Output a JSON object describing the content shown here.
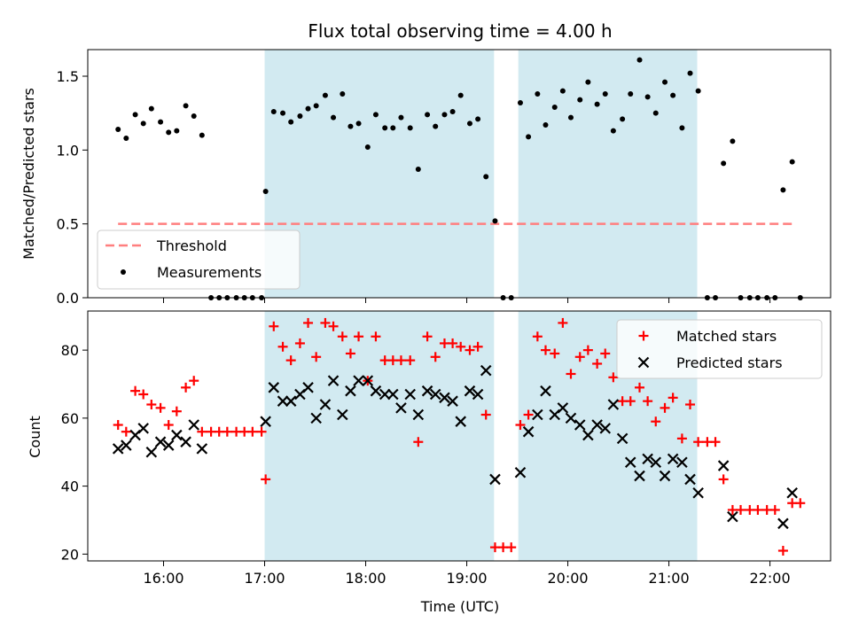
{
  "colors": {
    "band": "#add8e6",
    "threshold": "#ff7f7f",
    "measurement": "#000000",
    "matched": "#ff0000",
    "predicted": "#000000",
    "axis": "#000000"
  },
  "chart_data": [
    {
      "type": "scatter",
      "title": "Flux total observing time = 4.00 h",
      "xlabel": "",
      "ylabel": "Matched/Predicted stars",
      "xlim": [
        15.25,
        22.6
      ],
      "ylim": [
        0,
        1.68
      ],
      "yticks": [
        0.0,
        0.5,
        1.0,
        1.5
      ],
      "ytick_labels": [
        "0.0",
        "0.5",
        "1.0",
        "1.5"
      ],
      "xticks": [
        16,
        17,
        18,
        19,
        20,
        21,
        22
      ],
      "grid": false,
      "legend_position": "lower-left",
      "shaded_intervals": [
        [
          17.0,
          19.27
        ],
        [
          19.51,
          21.28
        ]
      ],
      "threshold": {
        "name": "Threshold",
        "y": 0.5,
        "x_range": [
          15.55,
          22.25
        ],
        "style": "dashed"
      },
      "series": [
        {
          "name": "Measurements",
          "marker": "dot",
          "x": [
            15.55,
            15.63,
            15.72,
            15.8,
            15.88,
            15.97,
            16.05,
            16.13,
            16.22,
            16.3,
            16.38,
            16.47,
            16.55,
            16.63,
            16.72,
            16.8,
            16.88,
            16.97,
            17.01,
            17.09,
            17.18,
            17.26,
            17.35,
            17.43,
            17.51,
            17.6,
            17.68,
            17.77,
            17.85,
            17.93,
            18.02,
            18.1,
            18.19,
            18.27,
            18.35,
            18.44,
            18.52,
            18.61,
            18.69,
            18.78,
            18.86,
            18.94,
            19.03,
            19.11,
            19.19,
            19.28,
            19.36,
            19.44,
            19.53,
            19.61,
            19.7,
            19.78,
            19.87,
            19.95,
            20.03,
            20.12,
            20.2,
            20.29,
            20.37,
            20.45,
            20.54,
            20.62,
            20.71,
            20.79,
            20.87,
            20.96,
            21.04,
            21.13,
            21.21,
            21.29,
            21.38,
            21.46,
            21.54,
            21.63,
            21.71,
            21.8,
            21.88,
            21.97,
            22.05,
            22.13,
            22.22,
            22.3
          ],
          "y": [
            1.14,
            1.08,
            1.24,
            1.18,
            1.28,
            1.19,
            1.12,
            1.13,
            1.3,
            1.23,
            1.1,
            0.0,
            0.0,
            0.0,
            0.0,
            0.0,
            0.0,
            0.0,
            0.72,
            1.26,
            1.25,
            1.19,
            1.23,
            1.28,
            1.3,
            1.37,
            1.22,
            1.38,
            1.16,
            1.18,
            1.02,
            1.24,
            1.15,
            1.15,
            1.22,
            1.15,
            0.87,
            1.24,
            1.16,
            1.24,
            1.26,
            1.37,
            1.18,
            1.21,
            0.82,
            0.52,
            0.0,
            0.0,
            1.32,
            1.09,
            1.38,
            1.17,
            1.29,
            1.4,
            1.22,
            1.34,
            1.46,
            1.31,
            1.38,
            1.13,
            1.21,
            1.38,
            1.61,
            1.36,
            1.25,
            1.46,
            1.37,
            1.15,
            1.52,
            1.4,
            0.0,
            0.0,
            0.91,
            1.06,
            0.0,
            0.0,
            0.0,
            0.0,
            0.0,
            0.73,
            0.92,
            0.0
          ]
        }
      ]
    },
    {
      "type": "scatter",
      "title": "",
      "xlabel": "Time (UTC)",
      "ylabel": "Count",
      "xlim": [
        15.25,
        22.6
      ],
      "ylim": [
        18,
        91.5
      ],
      "yticks": [
        20,
        40,
        60,
        80
      ],
      "ytick_labels": [
        "20",
        "40",
        "60",
        "80"
      ],
      "xticks": [
        16,
        17,
        18,
        19,
        20,
        21,
        22
      ],
      "xtick_labels": [
        "16:00",
        "17:00",
        "18:00",
        "19:00",
        "20:00",
        "21:00",
        "22:00"
      ],
      "grid": false,
      "legend_position": "upper-right",
      "shaded_intervals": [
        [
          17.0,
          19.27
        ],
        [
          19.51,
          21.28
        ]
      ],
      "series": [
        {
          "name": "Matched stars",
          "marker": "plus",
          "x": [
            15.55,
            15.63,
            15.72,
            15.8,
            15.88,
            15.97,
            16.05,
            16.13,
            16.22,
            16.3,
            16.38,
            16.47,
            16.55,
            16.63,
            16.72,
            16.8,
            16.88,
            16.97,
            17.01,
            17.09,
            17.18,
            17.26,
            17.35,
            17.43,
            17.51,
            17.6,
            17.68,
            17.77,
            17.85,
            17.93,
            18.02,
            18.1,
            18.19,
            18.27,
            18.35,
            18.44,
            18.52,
            18.61,
            18.69,
            18.78,
            18.86,
            18.94,
            19.03,
            19.11,
            19.19,
            19.28,
            19.36,
            19.44,
            19.53,
            19.61,
            19.7,
            19.78,
            19.87,
            19.95,
            20.03,
            20.12,
            20.2,
            20.29,
            20.37,
            20.45,
            20.54,
            20.62,
            20.71,
            20.79,
            20.87,
            20.96,
            21.04,
            21.13,
            21.21,
            21.29,
            21.38,
            21.46,
            21.54,
            21.63,
            21.71,
            21.8,
            21.88,
            21.97,
            22.05,
            22.13,
            22.22,
            22.3
          ],
          "y": [
            58,
            56,
            68,
            67,
            64,
            63,
            58,
            62,
            69,
            71,
            56,
            56,
            56,
            56,
            56,
            56,
            56,
            56,
            42,
            87,
            81,
            77,
            82,
            88,
            78,
            88,
            87,
            84,
            79,
            84,
            71,
            84,
            77,
            77,
            77,
            77,
            53,
            84,
            78,
            82,
            82,
            81,
            80,
            81,
            61,
            22,
            22,
            22,
            58,
            61,
            84,
            80,
            79,
            88,
            73,
            78,
            80,
            76,
            79,
            72,
            65,
            65,
            69,
            65,
            59,
            63,
            66,
            54,
            64,
            53,
            53,
            53,
            42,
            33,
            33,
            33,
            33,
            33,
            33,
            21,
            35,
            35
          ]
        },
        {
          "name": "Predicted stars",
          "marker": "x",
          "x": [
            15.55,
            15.63,
            15.72,
            15.8,
            15.88,
            15.97,
            16.05,
            16.13,
            16.22,
            16.3,
            16.38,
            17.01,
            17.09,
            17.18,
            17.26,
            17.35,
            17.43,
            17.51,
            17.6,
            17.68,
            17.77,
            17.85,
            17.93,
            18.02,
            18.1,
            18.19,
            18.27,
            18.35,
            18.44,
            18.52,
            18.61,
            18.69,
            18.78,
            18.86,
            18.94,
            19.03,
            19.11,
            19.19,
            19.28,
            19.53,
            19.61,
            19.7,
            19.78,
            19.87,
            19.95,
            20.03,
            20.12,
            20.2,
            20.29,
            20.37,
            20.45,
            20.54,
            20.62,
            20.71,
            20.79,
            20.87,
            20.96,
            21.04,
            21.13,
            21.21,
            21.29,
            21.54,
            21.63,
            22.13,
            22.22
          ],
          "y": [
            51,
            52,
            55,
            57,
            50,
            53,
            52,
            55,
            53,
            58,
            51,
            59,
            69,
            65,
            65,
            67,
            69,
            60,
            64,
            71,
            61,
            68,
            71,
            71,
            68,
            67,
            67,
            63,
            67,
            61,
            68,
            67,
            66,
            65,
            59,
            68,
            67,
            74,
            42,
            44,
            56,
            61,
            68,
            61,
            63,
            60,
            58,
            55,
            58,
            57,
            64,
            54,
            47,
            43,
            48,
            47,
            43,
            48,
            47,
            42,
            38,
            46,
            31,
            29,
            38
          ]
        }
      ]
    }
  ]
}
